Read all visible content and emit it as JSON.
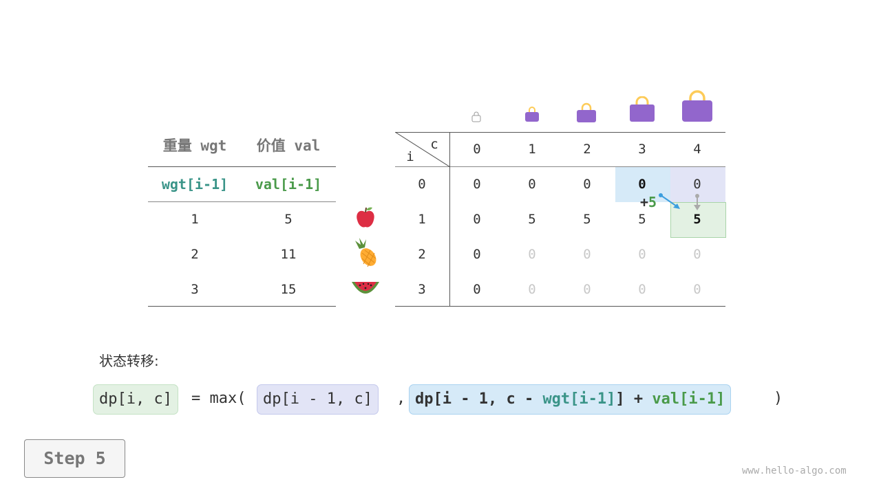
{
  "items_table": {
    "headers": [
      "重量 wgt",
      "价值 val"
    ],
    "subheaders": [
      "wgt[i-1]",
      "val[i-1]"
    ],
    "rows": [
      {
        "wgt": "1",
        "val": "5",
        "icon": "apple-icon"
      },
      {
        "wgt": "2",
        "val": "11",
        "icon": "pineapple-icon"
      },
      {
        "wgt": "3",
        "val": "15",
        "icon": "watermelon-icon"
      }
    ]
  },
  "dp_table": {
    "corner_i": "i",
    "corner_c": "c",
    "cols": [
      "0",
      "1",
      "2",
      "3",
      "4"
    ],
    "row_labels": [
      "0",
      "1",
      "2",
      "3"
    ],
    "cells": [
      [
        "0",
        "0",
        "0",
        "0",
        "0"
      ],
      [
        "0",
        "5",
        "5",
        "5",
        "5"
      ],
      [
        "0",
        "0",
        "0",
        "0",
        "0"
      ],
      [
        "0",
        "0",
        "0",
        "0",
        "0"
      ]
    ],
    "bag_icons": "bag-icon",
    "annotation": "+5",
    "colors": {
      "blue": "#d6eaf8",
      "purple": "#e2e4f6",
      "green": "#e3f1e3",
      "teal": "#3a9488",
      "green_text": "#4a9a4a",
      "arrow": "#3b9ede"
    }
  },
  "formula": {
    "label": "状态转移:",
    "lhs": "dp[i, c]",
    "eq": "= max(",
    "a": "dp[i - 1, c]",
    "comma": ",",
    "b1": "dp[i - 1, c - ",
    "b2": "wgt[i-1]",
    "b3": "] + ",
    "b4": "val[i-1]",
    "close": ")"
  },
  "step_label": "Step 5",
  "watermark": "www.hello-algo.com"
}
